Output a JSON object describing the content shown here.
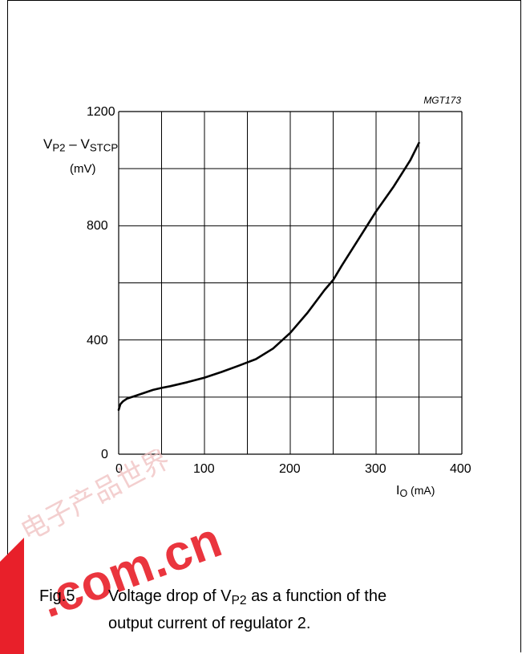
{
  "figure_id": "MGT173",
  "caption": {
    "number": "Fig.5",
    "text_line1_prefix": "Voltage drop of V",
    "text_line1_sub": "P2",
    "text_line1_suffix": " as a function of the",
    "text_line2": "output current of regulator 2."
  },
  "y_label": {
    "part1": "V",
    "sub1": "P2",
    "dash": " – V",
    "sub2": "STCP",
    "unit": "(mV)"
  },
  "x_label": {
    "part1": "I",
    "sub1": "O",
    "unit": " (mA)"
  },
  "watermark": {
    "text": "电子产品世界",
    "domain": ".com.cn"
  },
  "chart_data": {
    "type": "line",
    "xlim": [
      0,
      400
    ],
    "ylim": [
      0,
      1200
    ],
    "x_ticks": [
      0,
      100,
      200,
      300,
      400
    ],
    "y_ticks": [
      0,
      400,
      800,
      1200
    ],
    "grid": true,
    "series": [
      {
        "x": [
          0,
          2,
          5,
          10,
          20,
          30,
          40,
          50,
          60,
          80,
          100,
          120,
          140,
          160,
          180,
          200,
          220,
          240,
          250,
          260,
          280,
          300,
          320,
          340,
          350
        ],
        "y": [
          155,
          175,
          185,
          195,
          205,
          215,
          225,
          232,
          238,
          252,
          268,
          288,
          310,
          333,
          370,
          425,
          495,
          575,
          610,
          660,
          755,
          850,
          935,
          1030,
          1090
        ]
      }
    ]
  },
  "colors": {
    "line": "#000000",
    "grid": "#000000",
    "watermark_red": "#e8202a"
  }
}
